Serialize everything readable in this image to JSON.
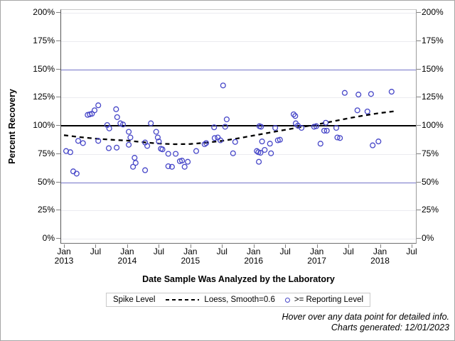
{
  "y_axis": {
    "title": "Percent Recovery",
    "tick_values": [
      0,
      25,
      50,
      75,
      100,
      125,
      150,
      175,
      200
    ],
    "tick_labels": [
      "0%",
      "25%",
      "50%",
      "75%",
      "100%",
      "125%",
      "150%",
      "175%",
      "200%"
    ]
  },
  "x_axis": {
    "title": "Date Sample Was Analyzed by the Laboratory",
    "ticks": [
      {
        "m": 0,
        "label": "Jan",
        "year": "2013"
      },
      {
        "m": 6,
        "label": "Jul",
        "year": ""
      },
      {
        "m": 12,
        "label": "Jan",
        "year": "2014"
      },
      {
        "m": 18,
        "label": "Jul",
        "year": ""
      },
      {
        "m": 24,
        "label": "Jan",
        "year": "2015"
      },
      {
        "m": 30,
        "label": "Jul",
        "year": ""
      },
      {
        "m": 36,
        "label": "Jan",
        "year": "2016"
      },
      {
        "m": 42,
        "label": "Jul",
        "year": ""
      },
      {
        "m": 48,
        "label": "Jan",
        "year": "2017"
      },
      {
        "m": 54,
        "label": "Jul",
        "year": ""
      },
      {
        "m": 60,
        "label": "Jan",
        "year": "2018"
      },
      {
        "m": 66,
        "label": "Jul",
        "year": ""
      }
    ]
  },
  "legend": {
    "title": "Spike Level",
    "loess_label": "Loess, Smooth=0.6",
    "marker_label": ">= Reporting Level"
  },
  "footer": {
    "line1": "Hover over any data point for detailed info.",
    "line2": "Charts generated: 12/01/2023"
  },
  "colors": {
    "marker": "#4646c8",
    "refline_blue": "#7373c8",
    "refline_black": "#000000",
    "loess": "#000000",
    "grid": "#ebebf0",
    "axis": "#808080",
    "frame_border": "#a6a6a6"
  },
  "chart_data": {
    "type": "scatter",
    "title": "",
    "xlabel": "Date Sample Was Analyzed by the Laboratory",
    "ylabel": "Percent Recovery",
    "x_unit": "months since Jan 2013",
    "xlim": [
      0,
      66
    ],
    "ylim": [
      0,
      200
    ],
    "y_tick_interval": 25,
    "x_tick_labels": [
      "Jan 2013",
      "Jul",
      "Jan 2014",
      "Jul",
      "Jan 2015",
      "Jul",
      "Jan 2016",
      "Jul",
      "Jan 2017",
      "Jul",
      "Jan 2018",
      "Jul"
    ],
    "grid": "horizontal-light",
    "legend_position": "bottom",
    "reference_lines": [
      {
        "y": 50,
        "color": "#7373c8",
        "width": 1
      },
      {
        "y": 100,
        "color": "#000000",
        "width": 2
      },
      {
        "y": 150,
        "color": "#7373c8",
        "width": 1
      }
    ],
    "series": [
      {
        "name": ">= Reporting Level",
        "type": "scatter",
        "marker": "open-circle",
        "color": "#4646c8",
        "points_unit": "[month, percent_recovery]",
        "points": [
          [
            0.4,
            77
          ],
          [
            1.2,
            76
          ],
          [
            1.75,
            59
          ],
          [
            2.4,
            57
          ],
          [
            2.7,
            86
          ],
          [
            3.6,
            84
          ],
          [
            4.5,
            109
          ],
          [
            4.9,
            109.5
          ],
          [
            5.3,
            110
          ],
          [
            5.8,
            113
          ],
          [
            6.5,
            117.5
          ],
          [
            6.5,
            86
          ],
          [
            8.2,
            100
          ],
          [
            8.5,
            79.5
          ],
          [
            8.6,
            97
          ],
          [
            9.9,
            114
          ],
          [
            10,
            80
          ],
          [
            10.1,
            107
          ],
          [
            10.7,
            101.5
          ],
          [
            11.2,
            100.5
          ],
          [
            12.3,
            94
          ],
          [
            12.3,
            82.5
          ],
          [
            12.6,
            89
          ],
          [
            13.1,
            63
          ],
          [
            13.4,
            71
          ],
          [
            13.6,
            66.5
          ],
          [
            15.4,
            60
          ],
          [
            15.4,
            84.5
          ],
          [
            15.8,
            81.5
          ],
          [
            16.5,
            101.5
          ],
          [
            17.5,
            94
          ],
          [
            17.8,
            89
          ],
          [
            18,
            85.5
          ],
          [
            18.4,
            79
          ],
          [
            18.7,
            78.5
          ],
          [
            19.8,
            74.5
          ],
          [
            19.8,
            63.5
          ],
          [
            20.5,
            63
          ],
          [
            21.2,
            74.5
          ],
          [
            22,
            68
          ],
          [
            22.4,
            68.5
          ],
          [
            22.9,
            63
          ],
          [
            23.5,
            67.5
          ],
          [
            25.1,
            77
          ],
          [
            26.7,
            83
          ],
          [
            27,
            84
          ],
          [
            28.5,
            98
          ],
          [
            28.6,
            88.5
          ],
          [
            29.2,
            89
          ],
          [
            29.7,
            86.5
          ],
          [
            30.2,
            135
          ],
          [
            30.6,
            98.5
          ],
          [
            30.9,
            105
          ],
          [
            32.1,
            75
          ],
          [
            32.5,
            85
          ],
          [
            36.6,
            77
          ],
          [
            36.9,
            76
          ],
          [
            37,
            67.5
          ],
          [
            37.1,
            99
          ],
          [
            37.3,
            75.5
          ],
          [
            37.4,
            98.5
          ],
          [
            37.6,
            85.5
          ],
          [
            38.1,
            78
          ],
          [
            39.1,
            83.5
          ],
          [
            39.3,
            75
          ],
          [
            40.1,
            97.5
          ],
          [
            40.6,
            86.5
          ],
          [
            41,
            87
          ],
          [
            43.6,
            109.5
          ],
          [
            43.9,
            108
          ],
          [
            44,
            101.5
          ],
          [
            44.4,
            99.5
          ],
          [
            45.1,
            97.5
          ],
          [
            47.5,
            98.5
          ],
          [
            47.9,
            99
          ],
          [
            48.7,
            83.5
          ],
          [
            49.4,
            95
          ],
          [
            49.7,
            102
          ],
          [
            49.9,
            95
          ],
          [
            51.7,
            97.5
          ],
          [
            51.9,
            89
          ],
          [
            52.4,
            88.5
          ],
          [
            53.3,
            128.5
          ],
          [
            55.7,
            113
          ],
          [
            55.9,
            127
          ],
          [
            57.6,
            112
          ],
          [
            58.3,
            127.5
          ],
          [
            58.6,
            82
          ],
          [
            59.7,
            85.5
          ],
          [
            62.2,
            129.5
          ]
        ]
      },
      {
        "name": "Loess, Smooth=0.6",
        "type": "line",
        "style": "dashed",
        "color": "#000000",
        "points_unit": "[month, percent_recovery]",
        "points": [
          [
            0,
            91
          ],
          [
            3,
            89.3
          ],
          [
            6,
            88
          ],
          [
            9,
            87
          ],
          [
            12,
            86.2
          ],
          [
            15,
            84.8
          ],
          [
            18,
            83.6
          ],
          [
            21,
            83
          ],
          [
            24,
            83.2
          ],
          [
            27,
            84.4
          ],
          [
            30,
            86
          ],
          [
            33,
            88.2
          ],
          [
            36,
            90.7
          ],
          [
            39,
            93.3
          ],
          [
            42,
            95.8
          ],
          [
            45,
            98.2
          ],
          [
            48,
            100.5
          ],
          [
            51,
            103.2
          ],
          [
            54,
            106
          ],
          [
            57,
            108.5
          ],
          [
            60,
            110.6
          ],
          [
            63,
            112.3
          ]
        ]
      }
    ]
  }
}
